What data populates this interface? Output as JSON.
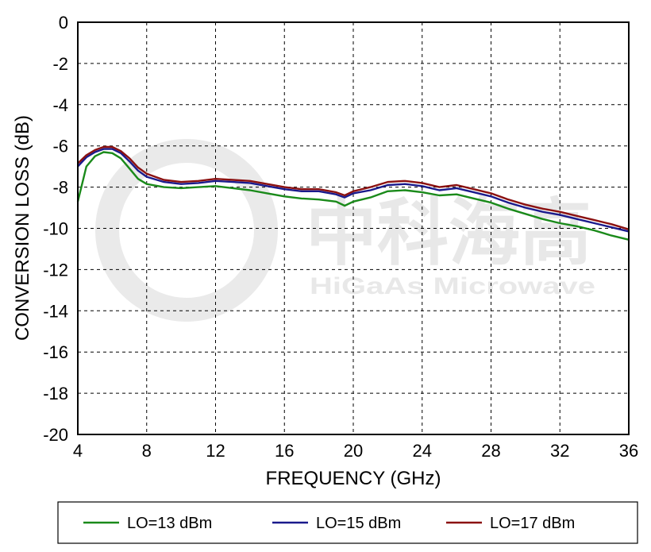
{
  "watermark": {
    "cn": "中科海高",
    "en": "HiGaAs Microwave"
  },
  "chart_data": {
    "type": "line",
    "title": "",
    "xlabel": "FREQUENCY (GHz)",
    "ylabel": "CONVERSION LOSS (dB)",
    "xlim": [
      4,
      36
    ],
    "ylim": [
      -20,
      0
    ],
    "xticks": [
      4,
      8,
      12,
      16,
      20,
      24,
      28,
      32,
      36
    ],
    "yticks": [
      0,
      -2,
      -4,
      -6,
      -8,
      -10,
      -12,
      -14,
      -16,
      -18,
      -20
    ],
    "grid": true,
    "legend_position": "bottom",
    "x": [
      4,
      4.5,
      5,
      5.5,
      6,
      6.5,
      7,
      7.5,
      8,
      9,
      10,
      11,
      12,
      13,
      14,
      15,
      16,
      17,
      18,
      19,
      19.5,
      20,
      21,
      22,
      23,
      24,
      25,
      26,
      27,
      28,
      29,
      30,
      31,
      32,
      33,
      34,
      35,
      36
    ],
    "series": [
      {
        "name": "LO=13 dBm",
        "color": "#1a8a1a",
        "values": [
          -8.7,
          -7.0,
          -6.5,
          -6.3,
          -6.35,
          -6.6,
          -7.1,
          -7.6,
          -7.85,
          -8.0,
          -8.05,
          -8.0,
          -7.95,
          -8.05,
          -8.15,
          -8.3,
          -8.45,
          -8.55,
          -8.6,
          -8.7,
          -8.9,
          -8.7,
          -8.5,
          -8.2,
          -8.15,
          -8.25,
          -8.4,
          -8.35,
          -8.55,
          -8.75,
          -9.05,
          -9.3,
          -9.55,
          -9.75,
          -9.9,
          -10.1,
          -10.35,
          -10.55
        ]
      },
      {
        "name": "LO=15 dBm",
        "color": "#1a1a8c",
        "values": [
          -7.0,
          -6.55,
          -6.3,
          -6.15,
          -6.15,
          -6.35,
          -6.75,
          -7.2,
          -7.5,
          -7.75,
          -7.85,
          -7.8,
          -7.7,
          -7.75,
          -7.8,
          -7.95,
          -8.1,
          -8.2,
          -8.2,
          -8.35,
          -8.5,
          -8.3,
          -8.15,
          -7.9,
          -7.85,
          -7.95,
          -8.15,
          -8.05,
          -8.25,
          -8.45,
          -8.75,
          -9.0,
          -9.2,
          -9.35,
          -9.55,
          -9.75,
          -9.95,
          -10.15
        ]
      },
      {
        "name": "LO=17 dBm",
        "color": "#8b1111",
        "values": [
          -6.85,
          -6.45,
          -6.2,
          -6.05,
          -6.05,
          -6.25,
          -6.6,
          -7.05,
          -7.35,
          -7.65,
          -7.75,
          -7.7,
          -7.6,
          -7.65,
          -7.7,
          -7.85,
          -8.0,
          -8.1,
          -8.1,
          -8.25,
          -8.4,
          -8.2,
          -8.0,
          -7.75,
          -7.7,
          -7.8,
          -8.0,
          -7.9,
          -8.1,
          -8.3,
          -8.6,
          -8.85,
          -9.05,
          -9.2,
          -9.4,
          -9.6,
          -9.8,
          -10.05
        ]
      }
    ]
  }
}
